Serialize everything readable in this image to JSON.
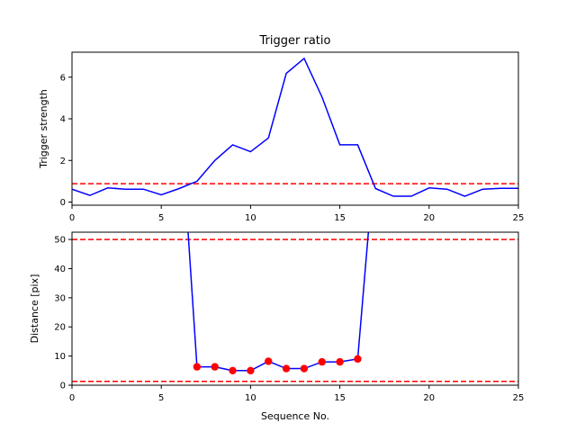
{
  "colors": {
    "line": "#0000ff",
    "marker": "#ff0000",
    "threshold": "#ff0000",
    "frame": "#000000"
  },
  "chart_data": [
    {
      "type": "line",
      "title": "Trigger ratio",
      "xlabel": "Sequence No.",
      "ylabel": "Trigger strength",
      "xlim": [
        0,
        25
      ],
      "ylim": [
        -0.15,
        7.2
      ],
      "xticks": [
        0,
        5,
        10,
        15,
        20,
        25
      ],
      "yticks": [
        0,
        2,
        4,
        6
      ],
      "grid": false,
      "series": [
        {
          "x": [
            0,
            1,
            2,
            3,
            4,
            5,
            6,
            7,
            8,
            9,
            10,
            11,
            12,
            13,
            14,
            15,
            16,
            17,
            18,
            19,
            20,
            21,
            22,
            23,
            24,
            25
          ],
          "y": [
            0.62,
            0.32,
            0.68,
            0.62,
            0.62,
            0.35,
            0.65,
            1.0,
            2.0,
            2.75,
            2.42,
            3.08,
            6.18,
            6.9,
            5.05,
            2.75,
            2.75,
            0.65,
            0.28,
            0.28,
            0.68,
            0.62,
            0.28,
            0.62,
            0.66,
            0.66
          ]
        }
      ],
      "threshold": 0.88
    },
    {
      "type": "line",
      "title": "",
      "xlabel": "Sequence No.",
      "ylabel": "Distance [pix]",
      "xlim": [
        0,
        25
      ],
      "ylim": [
        0,
        52.5
      ],
      "xticks": [
        0,
        5,
        10,
        15,
        20,
        25
      ],
      "yticks": [
        0,
        10,
        20,
        30,
        40,
        50
      ],
      "grid": false,
      "series": [
        {
          "x": [
            6.5,
            7,
            8,
            9,
            10,
            11,
            12,
            13,
            14,
            15,
            16,
            16.6
          ],
          "y": [
            52.5,
            6.3,
            6.3,
            5.0,
            5.0,
            8.2,
            5.7,
            5.7,
            8.0,
            8.0,
            9.0,
            52.5
          ]
        }
      ],
      "markers": {
        "x": [
          7,
          8,
          9,
          10,
          11,
          12,
          13,
          14,
          15,
          16
        ],
        "y": [
          6.3,
          6.3,
          5.0,
          5.0,
          8.2,
          5.7,
          5.7,
          8.0,
          8.0,
          9.0
        ]
      },
      "thresholds": [
        50,
        1.3
      ]
    }
  ]
}
